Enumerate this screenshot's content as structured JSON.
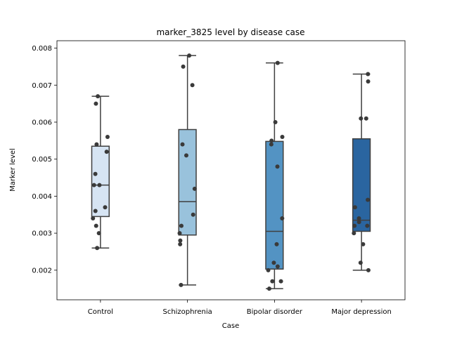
{
  "chart_data": {
    "type": "box",
    "title": "marker_3825 level by disease case",
    "xlabel": "Case",
    "ylabel": "Marker level",
    "ylim": [
      0.0012,
      0.0082
    ],
    "yticks": [
      0.002,
      0.003,
      0.004,
      0.005,
      0.006,
      0.007,
      0.008
    ],
    "ytick_labels": [
      "0.002",
      "0.003",
      "0.004",
      "0.005",
      "0.006",
      "0.007",
      "0.008"
    ],
    "grid": false,
    "categories": [
      "Control",
      "Schizophrenia",
      "Bipolar disorder",
      "Major depression"
    ],
    "colors": [
      "#d6e4f3",
      "#99c2dc",
      "#5393c3",
      "#2a65a0"
    ],
    "point_color": "#3a3a3a",
    "line_color": "#3f3f3f",
    "boxes": [
      {
        "q1": 0.00345,
        "median": 0.0043,
        "q3": 0.00535,
        "whisker_low": 0.0026,
        "whisker_high": 0.0067
      },
      {
        "q1": 0.00295,
        "median": 0.00385,
        "q3": 0.0058,
        "whisker_low": 0.0016,
        "whisker_high": 0.0078
      },
      {
        "q1": 0.00203,
        "median": 0.00305,
        "q3": 0.00548,
        "whisker_low": 0.0015,
        "whisker_high": 0.0076
      },
      {
        "q1": 0.00305,
        "median": 0.00335,
        "q3": 0.00555,
        "whisker_low": 0.002,
        "whisker_high": 0.0073
      }
    ],
    "points": [
      [
        0.0026,
        0.003,
        0.0032,
        0.0034,
        0.0036,
        0.0037,
        0.0043,
        0.0043,
        0.0046,
        0.0052,
        0.0054,
        0.0056,
        0.0065,
        0.0067
      ],
      [
        0.0016,
        0.0027,
        0.0028,
        0.003,
        0.0032,
        0.0035,
        0.0042,
        0.0051,
        0.0054,
        0.007,
        0.0075,
        0.0078
      ],
      [
        0.0015,
        0.0017,
        0.0017,
        0.002,
        0.0021,
        0.0022,
        0.0027,
        0.0034,
        0.0048,
        0.0054,
        0.0055,
        0.0056,
        0.006,
        0.0076
      ],
      [
        0.002,
        0.0022,
        0.0027,
        0.003,
        0.0032,
        0.0032,
        0.0033,
        0.0034,
        0.0037,
        0.0039,
        0.0061,
        0.0061,
        0.0071,
        0.0073
      ]
    ]
  }
}
